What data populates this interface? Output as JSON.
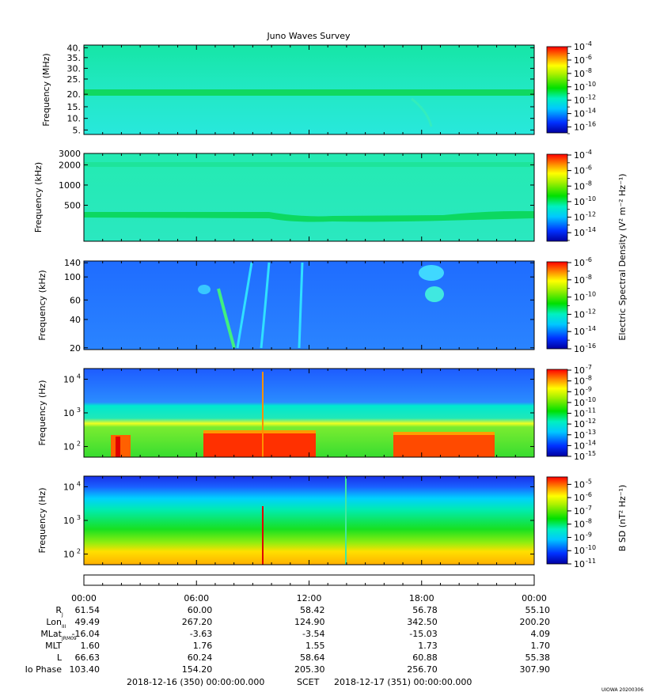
{
  "chart_data": {
    "type": "heatmap",
    "title": "Juno Waves Survey",
    "credit": "UIOWA 20200306",
    "x_range": [
      "2018-12-16 00:00",
      "2018-12-17 00:00"
    ],
    "time_ticks": [
      "00:00",
      "06:00",
      "12:00",
      "18:00",
      "00:00"
    ],
    "panels": [
      {
        "ylabel": "Frequency (MHz)",
        "y_ticks": [
          "40.",
          "35.",
          "30.",
          "25.",
          "20.",
          "15.",
          "10.",
          "5."
        ],
        "colorbar": {
          "exp_range": [
            -17,
            -4
          ],
          "labels": [
            "-4",
            "-6",
            "-8",
            "-10",
            "-12",
            "-14",
            "-16"
          ],
          "title": ""
        },
        "features": [
          {
            "kind": "band",
            "desc": "constant emission near 21 MHz"
          }
        ]
      },
      {
        "ylabel": "Frequency (kHz)",
        "y_ticks": [
          "3000",
          "2000",
          "1000",
          "500"
        ],
        "colorbar": {
          "exp_range": [
            -15,
            -4
          ],
          "labels": [
            "-4",
            "-6",
            "-8",
            "-10",
            "-12",
            "-14"
          ],
          "title": "Electric Spectral Density (V² m⁻² Hz⁻¹)"
        },
        "features": [
          {
            "kind": "band",
            "desc": "bands near 2000 kHz and 400 kHz"
          }
        ]
      },
      {
        "ylabel": "Frequency (kHz)",
        "y_ticks": [
          "140",
          "100",
          "60",
          "40",
          "20"
        ],
        "colorbar": {
          "exp_range": [
            -16,
            -6
          ],
          "labels": [
            "-6",
            "-8",
            "-10",
            "-12",
            "-14",
            "-16"
          ],
          "title": ""
        },
        "features": [
          {
            "kind": "arc",
            "desc": "drifting emission arcs 07:00–10:00 and near 19:00"
          }
        ]
      },
      {
        "ylabel": "Frequency (Hz)",
        "y_ticks": [
          "10",
          "10",
          "10"
        ],
        "y_tick_exps": [
          "4",
          "3",
          "2"
        ],
        "colorbar": {
          "exp_range": [
            -15,
            -7
          ],
          "labels": [
            "-7",
            "-8",
            "-9",
            "-10",
            "-11",
            "-12",
            "-13",
            "-14",
            "-15"
          ],
          "title": ""
        },
        "features": [
          {
            "kind": "intensification",
            "desc": "strong low-frequency emission ~07:20–12:20 and ~18:00–22:00"
          }
        ]
      },
      {
        "ylabel": "Frequency (Hz)",
        "y_ticks": [
          "10",
          "10",
          "10"
        ],
        "y_tick_exps": [
          "4",
          "3",
          "2"
        ],
        "colorbar": {
          "exp_range": [
            -11,
            -4.5
          ],
          "labels": [
            "-5",
            "-6",
            "-7",
            "-8",
            "-9",
            "-10",
            "-11"
          ],
          "title": "B SD (nT² Hz⁻¹)"
        },
        "features": [
          {
            "kind": "broadband",
            "desc": "low-frequency magnetic noise below ~200 Hz"
          }
        ]
      }
    ],
    "ephemeris": {
      "rows": [
        {
          "label": "R",
          "sub": "J",
          "values": [
            "61.54",
            "60.00",
            "58.42",
            "56.78",
            "55.10"
          ]
        },
        {
          "label": "Lon",
          "sub": "III",
          "values": [
            "49.49",
            "267.20",
            "124.90",
            "342.50",
            "200.20"
          ]
        },
        {
          "label": "MLat",
          "sub": "JRM09",
          "values": [
            "-16.04",
            "-3.63",
            "-3.54",
            "-15.03",
            "4.09"
          ]
        },
        {
          "label": "MLT",
          "sub": "",
          "values": [
            "1.60",
            "1.76",
            "1.55",
            "1.73",
            "1.70"
          ]
        },
        {
          "label": "L",
          "sub": "",
          "values": [
            "66.63",
            "60.24",
            "58.64",
            "60.88",
            "55.38"
          ]
        },
        {
          "label": "Io Phase",
          "sub": "",
          "values": [
            "103.40",
            "154.20",
            "205.30",
            "256.70",
            "307.90"
          ]
        }
      ]
    },
    "footer": {
      "start": "2018-12-16 (350) 00:00:00.000",
      "scet": "SCET",
      "end": "2018-12-17 (351) 00:00:00.000"
    }
  }
}
